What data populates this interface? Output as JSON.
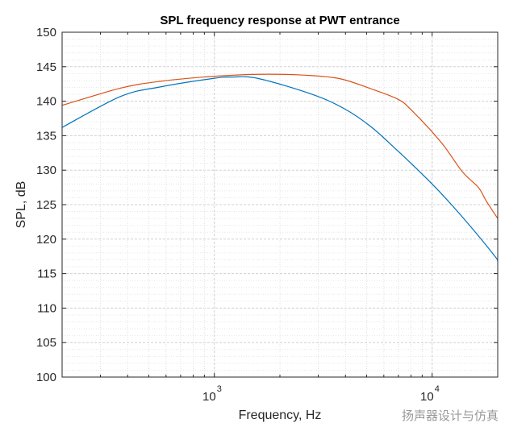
{
  "chart_data": {
    "type": "line",
    "title": "SPL frequency response at PWT entrance",
    "xlabel": "Frequency, Hz",
    "ylabel": "SPL, dB",
    "xscale": "log",
    "xlim": [
      200,
      20000
    ],
    "ylim": [
      100,
      150
    ],
    "yticks": [
      100,
      105,
      110,
      115,
      120,
      125,
      130,
      135,
      140,
      145,
      150
    ],
    "xticks": [
      {
        "value": 1000,
        "base": "10",
        "exp": "3"
      },
      {
        "value": 10000,
        "base": "10",
        "exp": "4"
      }
    ],
    "grid": true,
    "minor_grid": true,
    "series": [
      {
        "color": "#0072BD",
        "x": [
          200,
          372,
          571,
          986,
          1200,
          1589,
          2812,
          3955,
          5236,
          6950,
          8750,
          11020,
          14580,
          19330,
          20000
        ],
        "y": [
          136.2,
          140.7,
          142.1,
          143.3,
          143.5,
          143.3,
          141.0,
          138.9,
          136.3,
          132.8,
          129.8,
          126.6,
          122.3,
          117.6,
          116.8
        ]
      },
      {
        "color": "#D95319",
        "x": [
          200,
          372,
          571,
          986,
          1589,
          2500,
          3724,
          5236,
          6950,
          8037,
          11020,
          13740,
          16300,
          17740,
          20000
        ],
        "y": [
          139.4,
          141.9,
          142.9,
          143.6,
          143.9,
          143.8,
          143.3,
          141.8,
          140.3,
          138.7,
          134.0,
          129.8,
          127.5,
          125.5,
          123.0
        ]
      }
    ]
  },
  "watermark": "扬声器设计与仿真"
}
